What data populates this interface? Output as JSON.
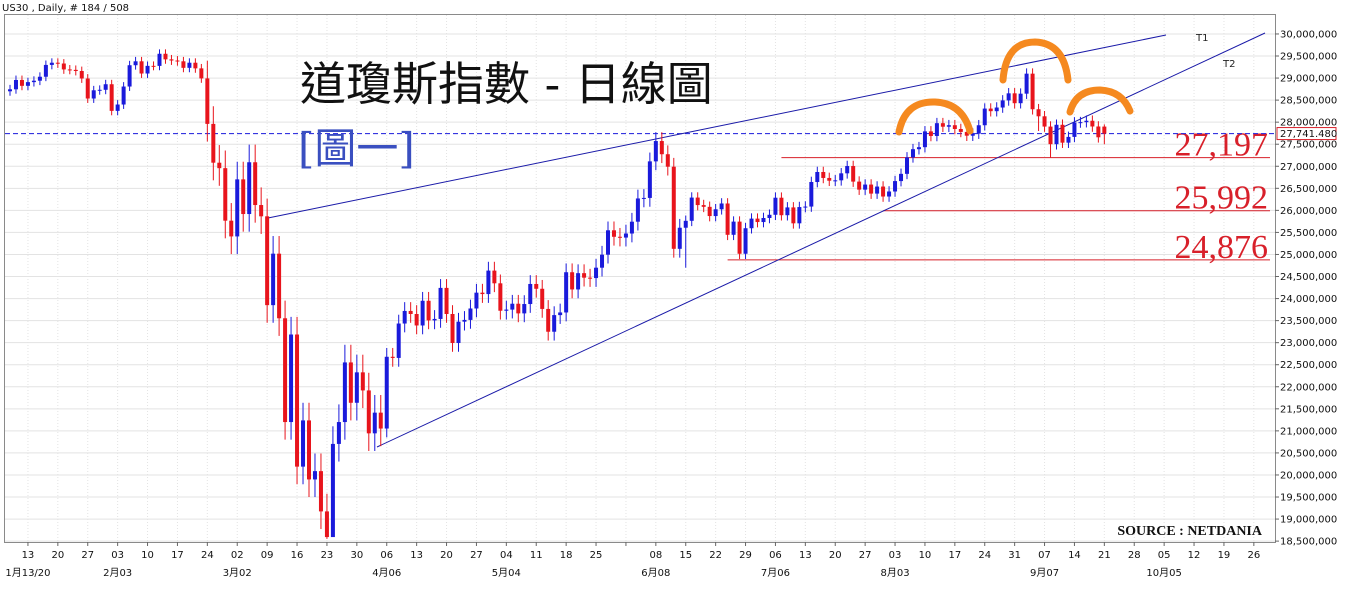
{
  "chart_data": {
    "type": "candlestick",
    "header": "US30 , Daily, # 184 / 508",
    "title": "道瓊斯指數 - 日線圖",
    "subtitle": "[圖一]",
    "source": "SOURCE : NETDANIA",
    "trendline_labels": [
      "T1",
      "T2"
    ],
    "up_color": "#1a1adb",
    "down_color": "#e8141c",
    "grid": true,
    "ylim": [
      18480000,
      30430000
    ],
    "yticks": [
      {
        "value": 18500000,
        "label": "18,500,000"
      },
      {
        "value": 19000000,
        "label": "19,000,000"
      },
      {
        "value": 19500000,
        "label": "19,500,000"
      },
      {
        "value": 20000000,
        "label": "20,000,000"
      },
      {
        "value": 20500000,
        "label": "20,500,000"
      },
      {
        "value": 21000000,
        "label": "21,000,000"
      },
      {
        "value": 21500000,
        "label": "21,500,000"
      },
      {
        "value": 22000000,
        "label": "22,000,000"
      },
      {
        "value": 22500000,
        "label": "22,500,000"
      },
      {
        "value": 23000000,
        "label": "23,000,000"
      },
      {
        "value": 23500000,
        "label": "23,500,000"
      },
      {
        "value": 24000000,
        "label": "24,000,000"
      },
      {
        "value": 24500000,
        "label": "24,500,000"
      },
      {
        "value": 25000000,
        "label": "25,000,000"
      },
      {
        "value": 25500000,
        "label": "25,500,000"
      },
      {
        "value": 26000000,
        "label": "26,000,000"
      },
      {
        "value": 26500000,
        "label": "26,500,000"
      },
      {
        "value": 27000000,
        "label": "27,000,000"
      },
      {
        "value": 27500000,
        "label": "27,500,000"
      },
      {
        "value": 28000000,
        "label": "28,000,000"
      },
      {
        "value": 28500000,
        "label": "28,500,000"
      },
      {
        "value": 29000000,
        "label": "29,000,000"
      },
      {
        "value": 29500000,
        "label": "29,500,000"
      },
      {
        "value": 30000000,
        "label": "30,000,000"
      }
    ],
    "week_labels": [
      "13",
      "20",
      "27",
      "03",
      "10",
      "17",
      "24",
      "02",
      "09",
      "16",
      "23",
      "30",
      "06",
      "13",
      "20",
      "27",
      "04",
      "11",
      "18",
      "25",
      null,
      "08",
      "15",
      "22",
      "29",
      "06",
      "13",
      "20",
      "27",
      "03",
      "10",
      "17",
      "24",
      "31",
      "07",
      "14",
      "21",
      "28",
      "05",
      "12",
      "19",
      "26"
    ],
    "month_labels": [
      "1月13/20",
      null,
      null,
      "2月03",
      null,
      null,
      null,
      "3月02",
      null,
      null,
      null,
      null,
      "4月06",
      null,
      null,
      null,
      "5月04",
      null,
      null,
      null,
      null,
      "6月08",
      null,
      null,
      null,
      "7月06",
      null,
      null,
      null,
      "8月03",
      null,
      null,
      null,
      null,
      "9月07",
      null,
      null,
      null,
      "10月05",
      null,
      null,
      null
    ],
    "current_price": {
      "value": 27741480,
      "label": "27,741.480",
      "color": "#1a1adb"
    },
    "levels": [
      {
        "value": 27197000,
        "label": "27,197"
      },
      {
        "value": 25992000,
        "label": "25,992"
      },
      {
        "value": 24876000,
        "label": "24,876"
      }
    ],
    "level_color": "#d8202a",
    "open": [
      28700000,
      28745000,
      28957000,
      28824000,
      28908000,
      28940000,
      29030000,
      29298000,
      29348000,
      29330000,
      29196000,
      29186000,
      29160000,
      28990000,
      28536000,
      28723000,
      28734000,
      28860000,
      28256000,
      28400000,
      28808000,
      29291000,
      29380000,
      29103000,
      29277000,
      29276000,
      29551000,
      29424000,
      29398000,
      29380000,
      29232000,
      29348000,
      29220000,
      28992000,
      27961000,
      27081000,
      26957000,
      25766000,
      25409000,
      26703000,
      25917000,
      27091000,
      26121000,
      25865000,
      23851000,
      25018000,
      23553000,
      21200000,
      23185000,
      20189000,
      21237000,
      19899000,
      20087000,
      19174000,
      18592000,
      20704000,
      21200000,
      22552000,
      21637000,
      22327000,
      21917000,
      20944000,
      21413000,
      21053000,
      22680000,
      22654000,
      23434000,
      23719000,
      23650000,
      23390000,
      23950000,
      23505000,
      23538000,
      24242000,
      23650000,
      22993000,
      23476000,
      23516000,
      23775000,
      24134000,
      24102000,
      24634000,
      24346000,
      23724000,
      23750000,
      23883000,
      23664000,
      23876000,
      24331000,
      24222000,
      23765000,
      23248000,
      23625000,
      23685000,
      24597000,
      24207000,
      24576000,
      24474000,
      24465000,
      24700000,
      24995000,
      25548000,
      25401000,
      25383000,
      25475000,
      25743000,
      26270000,
      26282000,
      27111000,
      27572000,
      27273000,
      26990000,
      25128000,
      25606000,
      25763000,
      26290000,
      26120000,
      26080000,
      25871000,
      26025000,
      26156000,
      25446000,
      25745000,
      25016000,
      25595000,
      25813000,
      25735000,
      25827000,
      25900000,
      26287000,
      25890000,
      26067000,
      25706000,
      26075000,
      26086000,
      26643000,
      26870000,
      26735000,
      26672000,
      26681000,
      26840000,
      27005000,
      26652000,
      26470000,
      26585000,
      26380000,
      26540000,
      26314000,
      26428000,
      26664000,
      26828000,
      27202000,
      27387000,
      27433000,
      27791000,
      27687000,
      27977000,
      27897000,
      27931000,
      27845000,
      27779000,
      27693000,
      27740000,
      27930000,
      28308000,
      28249000,
      28332000,
      28493000,
      28654000,
      28430000,
      28646000,
      29100000,
      28293000,
      28133000,
      27900000,
      27501000,
      27941000,
      27535000,
      27666000,
      27993000,
      28000000,
      28032000,
      27902000,
      27900000
    ],
    "high": [
      28845000,
      29057000,
      29057000,
      29008000,
      29040000,
      29130000,
      29398000,
      29448000,
      29448000,
      29430000,
      29296000,
      29286000,
      29260000,
      29090000,
      28823000,
      28834000,
      28960000,
      28960000,
      28500000,
      28908000,
      29391000,
      29480000,
      29480000,
      29377000,
      29377000,
      29651000,
      29651000,
      29524000,
      29498000,
      29480000,
      29448000,
      29448000,
      29320000,
      29392000,
      28361000,
      27481000,
      27357000,
      26166000,
      27103000,
      27103000,
      27491000,
      27491000,
      26521000,
      26265000,
      25418000,
      25418000,
      23953000,
      23585000,
      23585000,
      21637000,
      21637000,
      20487000,
      20487000,
      19574000,
      21104000,
      21600000,
      22952000,
      22952000,
      22727000,
      22727000,
      22317000,
      21813000,
      21813000,
      22880000,
      22880000,
      23634000,
      23919000,
      23919000,
      23850000,
      24150000,
      24150000,
      23738000,
      24442000,
      24442000,
      23850000,
      23676000,
      23716000,
      23975000,
      24334000,
      24334000,
      24834000,
      24834000,
      24546000,
      23950000,
      24083000,
      24083000,
      24076000,
      24531000,
      24531000,
      24422000,
      23965000,
      23825000,
      23885000,
      24797000,
      24797000,
      24776000,
      24776000,
      24674000,
      24900000,
      25195000,
      25748000,
      25748000,
      25601000,
      25675000,
      25943000,
      26470000,
      26482000,
      27311000,
      27772000,
      27772000,
      27473000,
      27190000,
      25806000,
      25883000,
      26410000,
      26410000,
      26240000,
      26200000,
      26145000,
      26276000,
      26276000,
      25865000,
      25865000,
      25715000,
      25933000,
      25933000,
      25947000,
      26020000,
      26407000,
      26407000,
      26187000,
      26187000,
      26195000,
      26206000,
      26763000,
      26990000,
      26990000,
      26855000,
      26801000,
      26960000,
      27125000,
      27125000,
      26772000,
      26705000,
      26705000,
      26660000,
      26660000,
      26548000,
      26784000,
      26948000,
      27322000,
      27507000,
      27553000,
      27911000,
      27911000,
      28097000,
      28097000,
      28051000,
      28051000,
      27965000,
      27899000,
      27860000,
      28050000,
      28428000,
      28428000,
      28452000,
      28613000,
      28774000,
      28774000,
      28766000,
      29220000,
      29220000,
      28413000,
      28253000,
      28020000,
      28061000,
      28061000,
      27786000,
      28113000,
      28120000,
      28152000,
      28152000,
      28022000,
      27950000
    ],
    "low": [
      28600000,
      28645000,
      28724000,
      28724000,
      28808000,
      28840000,
      28930000,
      29198000,
      29230000,
      29096000,
      29086000,
      29060000,
      28890000,
      28436000,
      28436000,
      28623000,
      28634000,
      28156000,
      28156000,
      28300000,
      28708000,
      29191000,
      29003000,
      29003000,
      29176000,
      29176000,
      29324000,
      29298000,
      29280000,
      29132000,
      29132000,
      29120000,
      28892000,
      27561000,
      26681000,
      26557000,
      25366000,
      25009000,
      25009000,
      25517000,
      25517000,
      25721000,
      25465000,
      23451000,
      23451000,
      23153000,
      20800000,
      20800000,
      19789000,
      19789000,
      19499000,
      19499000,
      18774000,
      18550000,
      18700000,
      20304000,
      20800000,
      21237000,
      21237000,
      21517000,
      20544000,
      20544000,
      20653000,
      20853000,
      22454000,
      22454000,
      23234000,
      23450000,
      23190000,
      23190000,
      23305000,
      23305000,
      23338000,
      23450000,
      22793000,
      22793000,
      23276000,
      23316000,
      23575000,
      23902000,
      23902000,
      24146000,
      23524000,
      23524000,
      23550000,
      23464000,
      23464000,
      23676000,
      24022000,
      23565000,
      23048000,
      23048000,
      23425000,
      23485000,
      24007000,
      24007000,
      24274000,
      24265000,
      24265000,
      24500000,
      24795000,
      25201000,
      25183000,
      25183000,
      25275000,
      25543000,
      26070000,
      26082000,
      26911000,
      27073000,
      26790000,
      24928000,
      24928000,
      24700000,
      25643000,
      26000000,
      25960000,
      25751000,
      25751000,
      25905000,
      25326000,
      25326000,
      24896000,
      24896000,
      25475000,
      25615000,
      25615000,
      25707000,
      25780000,
      25770000,
      25770000,
      25586000,
      25586000,
      25955000,
      25966000,
      26523000,
      26615000,
      26552000,
      26552000,
      26561000,
      26720000,
      26532000,
      26350000,
      26350000,
      26260000,
      26260000,
      26194000,
      26194000,
      26308000,
      26544000,
      26708000,
      27082000,
      27267000,
      27313000,
      27567000,
      27567000,
      27777000,
      27777000,
      27725000,
      27659000,
      27573000,
      27573000,
      27620000,
      27810000,
      28129000,
      28129000,
      28212000,
      28373000,
      28310000,
      28310000,
      28526000,
      28173000,
      27800000,
      27780000,
      27200000,
      27381000,
      27415000,
      27415000,
      27546000,
      27873000,
      27880000,
      27782000,
      27537000,
      27500000
    ],
    "close": [
      28745000,
      28957000,
      28824000,
      28908000,
      28940000,
      29030000,
      29298000,
      29348000,
      29330000,
      29196000,
      29186000,
      29160000,
      28990000,
      28536000,
      28723000,
      28734000,
      28860000,
      28256000,
      28400000,
      28808000,
      29291000,
      29380000,
      29103000,
      29277000,
      29276000,
      29551000,
      29424000,
      29398000,
      29380000,
      29232000,
      29348000,
      29220000,
      28992000,
      27961000,
      27081000,
      26957000,
      25766000,
      25409000,
      26703000,
      25917000,
      27091000,
      26121000,
      25865000,
      23851000,
      25018000,
      23553000,
      21200000,
      23185000,
      20189000,
      21237000,
      19899000,
      20087000,
      19174000,
      18592000,
      20704000,
      21200000,
      22552000,
      21637000,
      22327000,
      21917000,
      20944000,
      21413000,
      21053000,
      22680000,
      22654000,
      23434000,
      23719000,
      23650000,
      23390000,
      23950000,
      23505000,
      23538000,
      24242000,
      23650000,
      22993000,
      23476000,
      23516000,
      23775000,
      24134000,
      24102000,
      24634000,
      24346000,
      23724000,
      23750000,
      23883000,
      23664000,
      23876000,
      24331000,
      24222000,
      23765000,
      23248000,
      23625000,
      23685000,
      24597000,
      24207000,
      24576000,
      24474000,
      24465000,
      24700000,
      24995000,
      25548000,
      25401000,
      25383000,
      25475000,
      25743000,
      26270000,
      26282000,
      27111000,
      27572000,
      27273000,
      26990000,
      25128000,
      25606000,
      25763000,
      26290000,
      26120000,
      26080000,
      25871000,
      26025000,
      26156000,
      25446000,
      25745000,
      25016000,
      25595000,
      25813000,
      25735000,
      25827000,
      25900000,
      26287000,
      25890000,
      26067000,
      25706000,
      26075000,
      26086000,
      26643000,
      26870000,
      26735000,
      26672000,
      26681000,
      26840000,
      27005000,
      26652000,
      26470000,
      26585000,
      26380000,
      26540000,
      26314000,
      26428000,
      26664000,
      26828000,
      27202000,
      27387000,
      27433000,
      27791000,
      27687000,
      27977000,
      27897000,
      27931000,
      27845000,
      27779000,
      27693000,
      27740000,
      27930000,
      28308000,
      28249000,
      28332000,
      28493000,
      28654000,
      28430000,
      28646000,
      29100000,
      28293000,
      28133000,
      27900000,
      27501000,
      27941000,
      27535000,
      27666000,
      27993000,
      28000000,
      28032000,
      27902000,
      27657000,
      27741000
    ]
  }
}
